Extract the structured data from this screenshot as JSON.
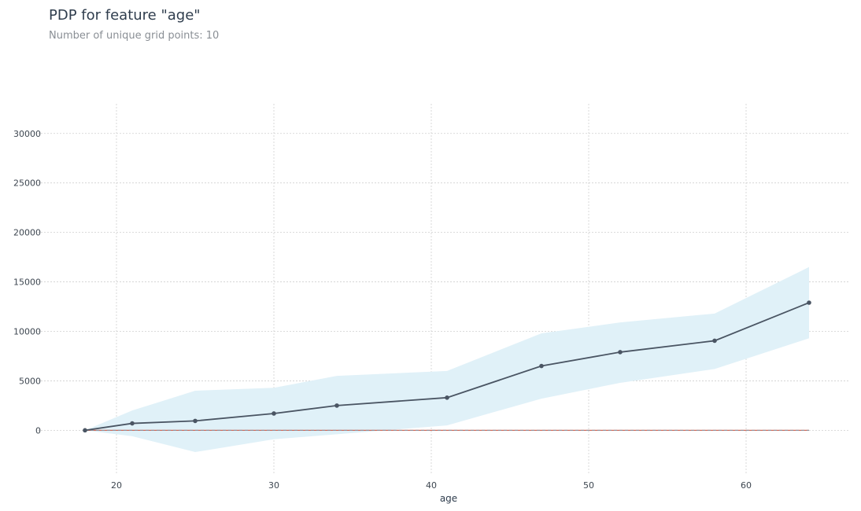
{
  "header": {
    "title": "PDP for feature \"age\"",
    "subtitle": "Number of unique grid points: 10"
  },
  "chart_data": {
    "type": "line",
    "xlabel": "age",
    "ylabel": "",
    "xlim": [
      15,
      66.5
    ],
    "ylim": [
      -4500,
      33000
    ],
    "xticks": [
      20,
      30,
      40,
      50,
      60
    ],
    "yticks": [
      0,
      5000,
      10000,
      15000,
      20000,
      25000,
      30000
    ],
    "grid": true,
    "x": [
      18,
      21,
      25,
      30,
      34,
      41,
      47,
      52,
      58,
      64
    ],
    "series": [
      {
        "values": [
          0,
          700,
          950,
          1700,
          2500,
          3300,
          6500,
          7900,
          9050,
          12900
        ]
      }
    ],
    "band_upper": [
      0,
      2000,
      4000,
      4300,
      5500,
      6000,
      9800,
      10900,
      11800,
      16500
    ],
    "band_lower": [
      0,
      -600,
      -2200,
      -900,
      -400,
      500,
      3200,
      4800,
      6200,
      9300
    ],
    "baseline": 0,
    "colors": {
      "line": "#4a5563",
      "band": "#e0f1f8",
      "baseline_pos": "#cf6a5a",
      "baseline_neg": "#8a96a3",
      "grid": "#cfcfcf"
    }
  }
}
